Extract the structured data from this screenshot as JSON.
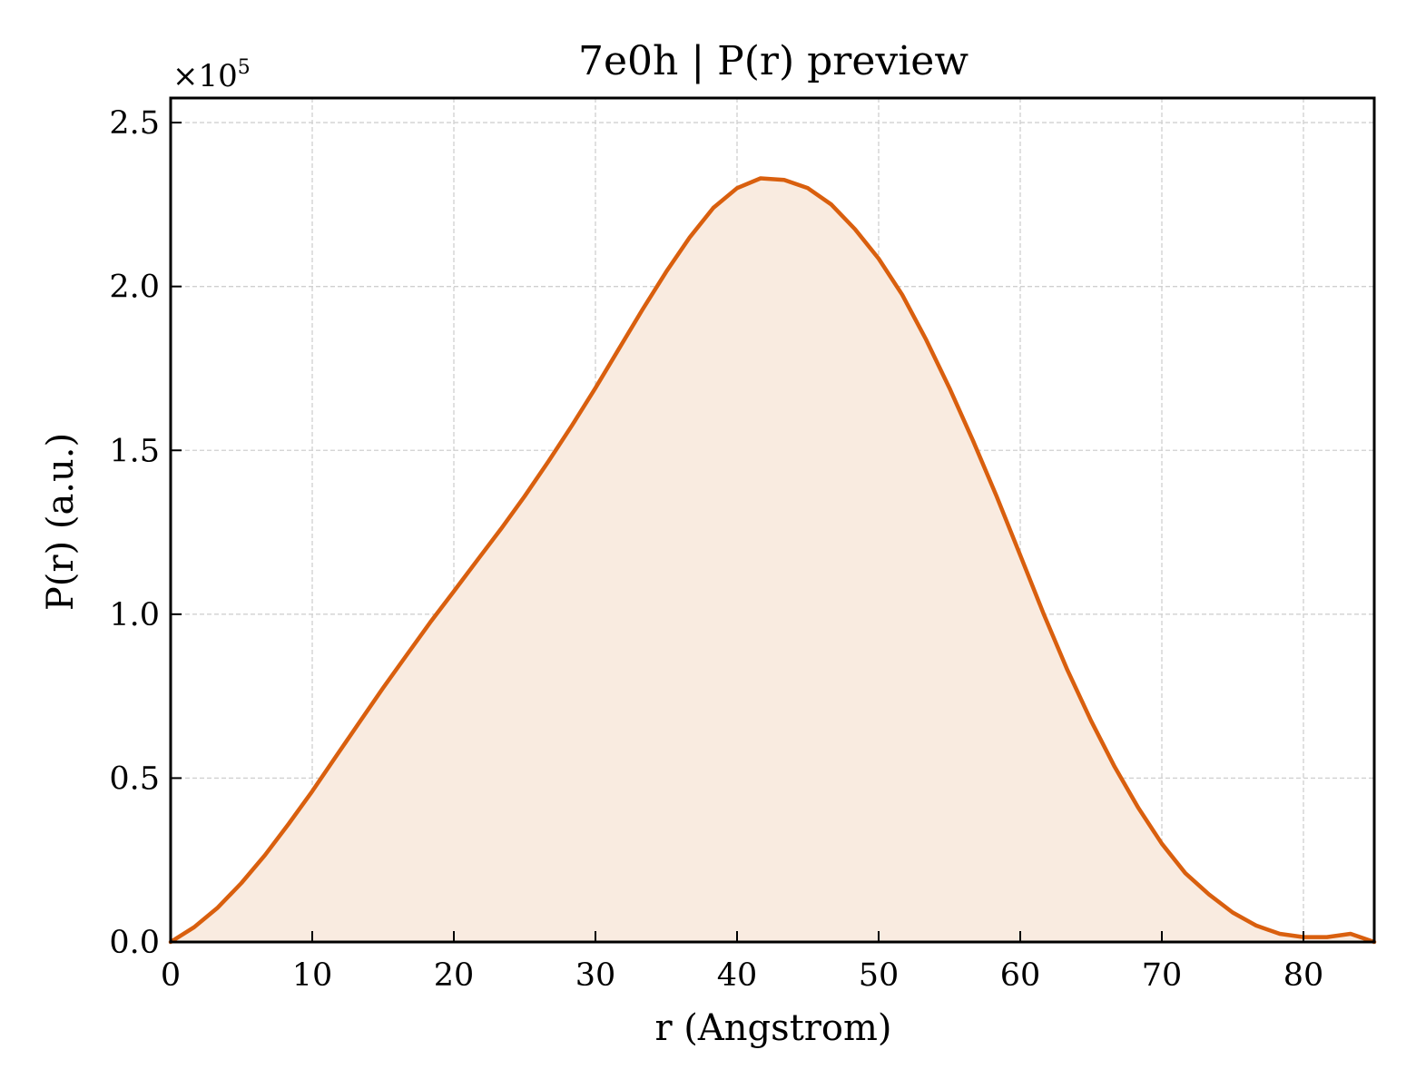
{
  "chart_data": {
    "type": "area",
    "title": "7e0h | P(r) preview",
    "xlabel": "r (Angstrom)",
    "ylabel": "P(r) (a.u.)",
    "y_multiplier_base": "×10",
    "y_multiplier_exp": "5",
    "xlim": [
      0,
      85
    ],
    "ylim": [
      0,
      2.575
    ],
    "x_ticks": [
      0,
      10,
      20,
      30,
      40,
      50,
      60,
      70,
      80
    ],
    "x_tick_labels": [
      "0",
      "10",
      "20",
      "30",
      "40",
      "50",
      "60",
      "70",
      "80"
    ],
    "y_ticks": [
      0,
      0.5,
      1.0,
      1.5,
      2.0,
      2.5
    ],
    "y_tick_labels": [
      "0.0",
      "0.5",
      "1.0",
      "1.5",
      "2.0",
      "2.5"
    ],
    "grid": true,
    "legend": false,
    "series": [
      {
        "color": "#d95f0e",
        "fill": "#f9ebe0",
        "x": [
          0,
          1.66,
          3.33,
          5.0,
          6.66,
          8.33,
          10.0,
          11.66,
          13.33,
          15.0,
          16.66,
          18.33,
          20.0,
          21.66,
          23.33,
          25.0,
          26.66,
          28.33,
          30.0,
          31.66,
          33.33,
          35.0,
          36.66,
          38.33,
          40.0,
          41.66,
          43.33,
          45.0,
          46.66,
          48.33,
          50.0,
          51.66,
          53.33,
          55.0,
          56.66,
          58.33,
          60.0,
          61.66,
          63.33,
          65.0,
          66.66,
          68.33,
          70.0,
          71.66,
          73.33,
          75.0,
          76.66,
          78.33,
          80.0,
          81.66,
          83.33,
          85.0
        ],
        "y": [
          0.0,
          0.045,
          0.105,
          0.18,
          0.265,
          0.36,
          0.46,
          0.565,
          0.67,
          0.775,
          0.875,
          0.975,
          1.07,
          1.165,
          1.26,
          1.36,
          1.465,
          1.575,
          1.69,
          1.81,
          1.93,
          2.045,
          2.15,
          2.24,
          2.3,
          2.33,
          2.325,
          2.3,
          2.25,
          2.175,
          2.085,
          1.975,
          1.84,
          1.69,
          1.53,
          1.36,
          1.18,
          1.0,
          0.83,
          0.675,
          0.535,
          0.41,
          0.3,
          0.21,
          0.145,
          0.09,
          0.05,
          0.025,
          0.015,
          0.015,
          0.025,
          0.0
        ]
      }
    ]
  }
}
